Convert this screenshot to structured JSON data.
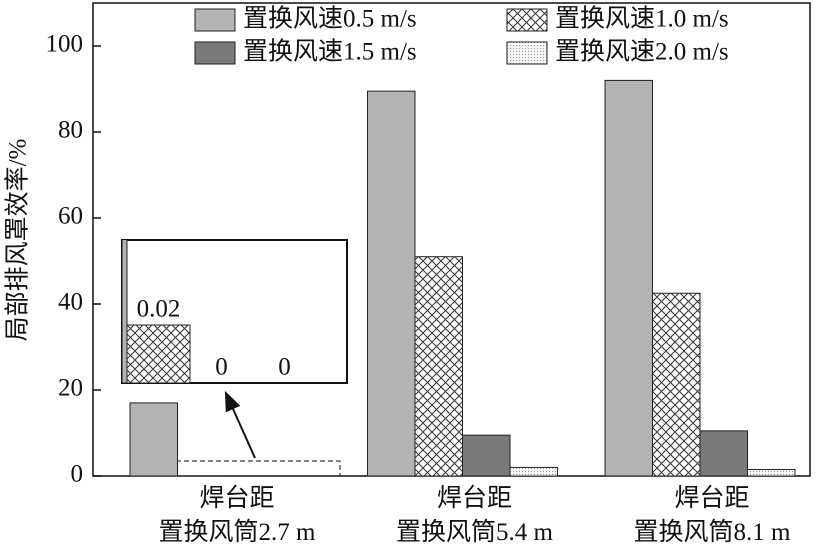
{
  "chart_data": {
    "type": "bar",
    "ylabel": "局部排风罩效率/%",
    "categories": [
      "焊台距\n置换风筒2.7 m",
      "焊台距\n置换风筒5.4 m",
      "焊台距\n置换风筒8.1 m"
    ],
    "series": [
      {
        "name": "置换风速0.5 m/s",
        "color": "#b3b3b3",
        "values": [
          17,
          89.5,
          92
        ]
      },
      {
        "name": "置换风速1.0 m/s",
        "color": "#ffffff",
        "pattern": "crosshatch",
        "values": [
          0.02,
          51,
          42.5
        ]
      },
      {
        "name": "置换风速1.5 m/s",
        "color": "#7a7a7a",
        "values": [
          0,
          9.5,
          10.5
        ]
      },
      {
        "name": "置换风速2.0 m/s",
        "color": "#f2f2f2",
        "pattern": "dots",
        "values": [
          0,
          2,
          1.5
        ]
      }
    ],
    "ylim": [
      0,
      110
    ],
    "yticks": [
      0,
      20,
      40,
      60,
      80,
      100
    ],
    "grid": false
  }
}
